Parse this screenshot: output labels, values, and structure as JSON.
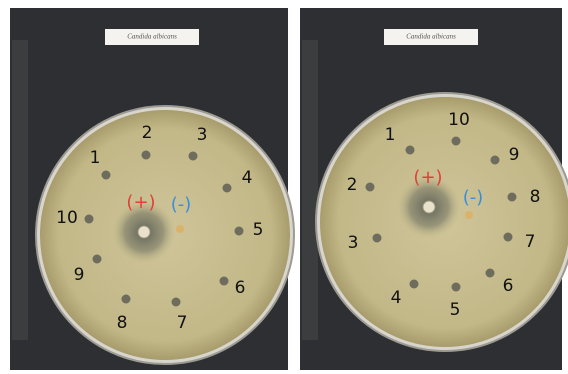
{
  "panels": [
    {
      "label": "Candida albicans",
      "disks": [
        "1",
        "2",
        "3",
        "4",
        "5",
        "6",
        "7",
        "8",
        "9",
        "10"
      ],
      "positive": "(+)",
      "negative": "(-)"
    },
    {
      "label": "Candida albicans",
      "disks": [
        "1",
        "2",
        "3",
        "4",
        "5",
        "6",
        "7",
        "8",
        "9",
        "10"
      ],
      "positive": "(+)",
      "negative": "(-)"
    }
  ]
}
